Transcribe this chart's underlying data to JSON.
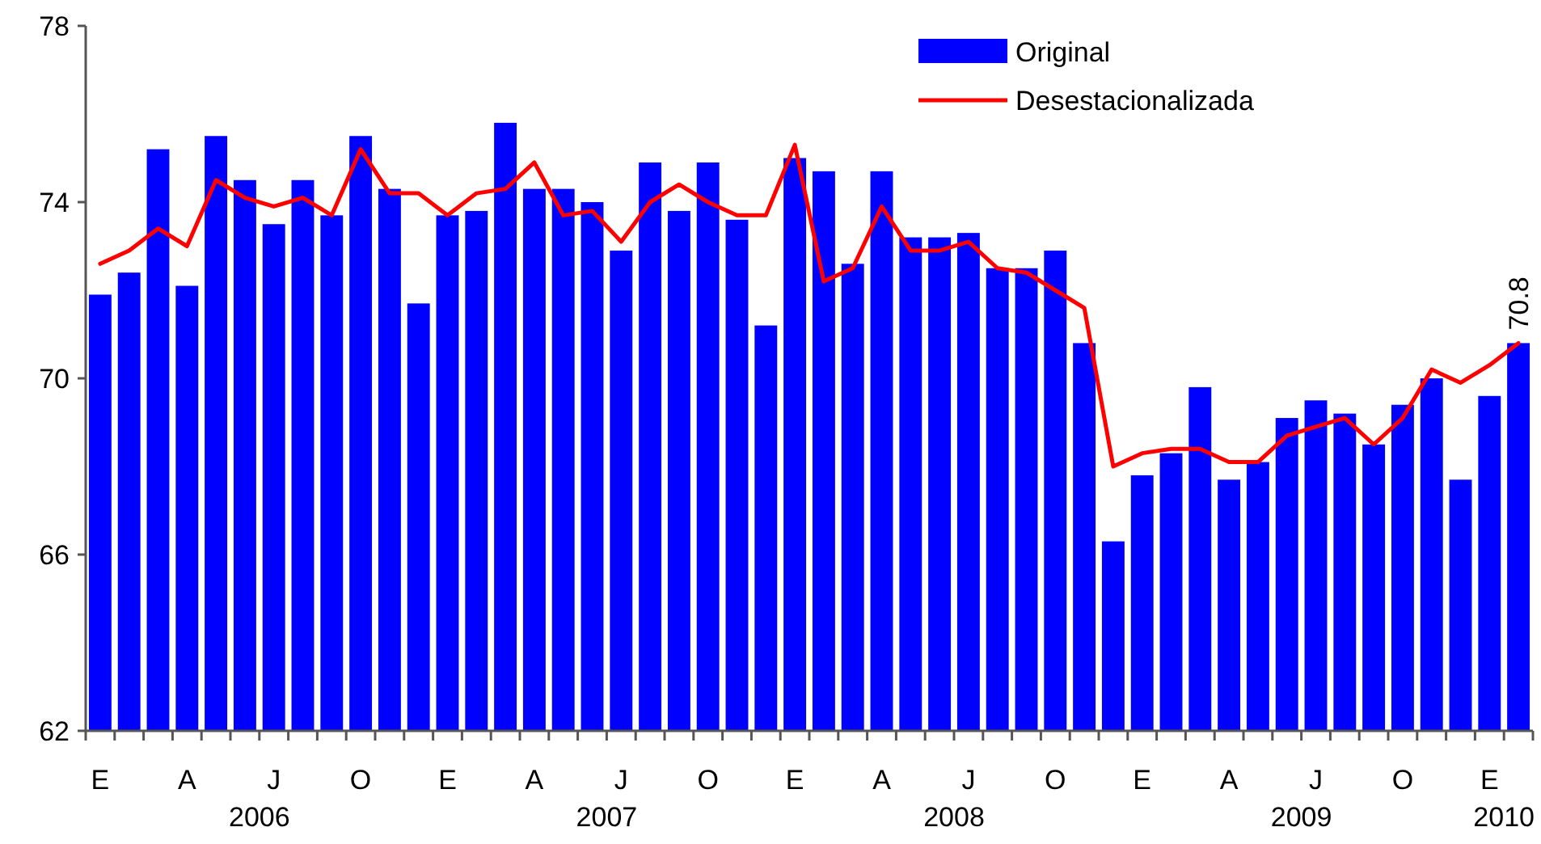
{
  "chart_data": {
    "type": "bar",
    "categories": [
      "E",
      null,
      null,
      "A",
      null,
      null,
      "J",
      null,
      null,
      "O",
      null,
      null,
      "E",
      null,
      null,
      "A",
      null,
      null,
      "J",
      null,
      null,
      "O",
      null,
      null,
      "E",
      null,
      null,
      "A",
      null,
      null,
      "J",
      null,
      null,
      "O",
      null,
      null,
      "E",
      null,
      null,
      "A",
      null,
      null,
      "J",
      null,
      null,
      "O",
      null,
      null,
      "E",
      null
    ],
    "series": [
      {
        "name": "Original",
        "color": "#0000ff",
        "values": [
          71.9,
          72.4,
          75.2,
          72.1,
          75.5,
          74.5,
          73.5,
          74.5,
          73.7,
          75.5,
          74.3,
          71.7,
          73.7,
          73.8,
          75.8,
          74.3,
          74.3,
          74.0,
          72.9,
          74.9,
          73.8,
          74.9,
          73.6,
          71.2,
          75.0,
          74.7,
          72.6,
          74.7,
          73.2,
          73.2,
          73.3,
          72.5,
          72.5,
          72.9,
          70.8,
          66.3,
          67.8,
          68.3,
          69.8,
          67.7,
          68.1,
          69.1,
          69.5,
          69.2,
          68.5,
          69.4,
          70.0,
          67.7,
          69.6,
          70.8
        ]
      },
      {
        "name": "Desestacionalizada",
        "type": "line",
        "color": "#ff0000",
        "values": [
          72.6,
          72.9,
          73.4,
          73.0,
          74.5,
          74.1,
          73.9,
          74.1,
          73.7,
          75.2,
          74.2,
          74.2,
          73.7,
          74.2,
          74.3,
          74.9,
          73.7,
          73.8,
          73.1,
          74.0,
          74.4,
          74.0,
          73.7,
          73.7,
          75.3,
          72.2,
          72.5,
          73.9,
          72.9,
          72.9,
          73.1,
          72.5,
          72.4,
          72.0,
          71.6,
          68.0,
          68.3,
          68.4,
          68.4,
          68.1,
          68.1,
          68.7,
          68.9,
          69.1,
          68.5,
          69.1,
          70.2,
          69.9,
          70.3,
          70.8
        ],
        "value_labels": [
          null,
          null,
          null,
          null,
          null,
          null,
          null,
          null,
          null,
          null,
          null,
          null,
          null,
          null,
          null,
          null,
          null,
          null,
          null,
          null,
          null,
          null,
          null,
          null,
          null,
          null,
          null,
          null,
          null,
          null,
          null,
          null,
          null,
          null,
          null,
          null,
          null,
          null,
          null,
          null,
          null,
          null,
          null,
          null,
          null,
          null,
          null,
          null,
          null,
          "70.8"
        ]
      }
    ],
    "ylim": [
      62,
      78
    ],
    "yticks": [
      62,
      66,
      70,
      74,
      78
    ],
    "grid": false,
    "legend": "top right",
    "annotations": [
      "2006",
      "2007",
      "2008",
      "2009",
      "2010"
    ]
  }
}
